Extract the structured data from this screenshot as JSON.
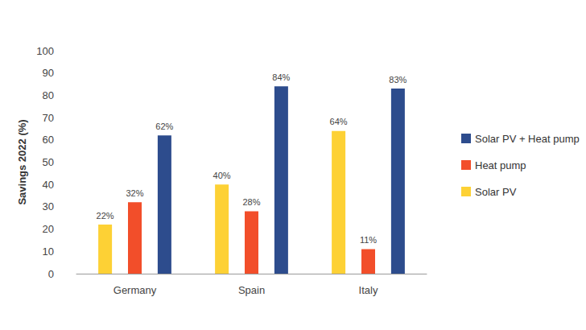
{
  "chart_data": {
    "type": "bar",
    "y_label": "Savings 2022 (%)",
    "categories": [
      "Germany",
      "Spain",
      "Italy"
    ],
    "series": [
      {
        "name": "Solar PV",
        "color": "#fdd135",
        "values": [
          22,
          40,
          64
        ],
        "value_labels": [
          "22%",
          "40%",
          "64%"
        ]
      },
      {
        "name": "Heat pump",
        "color": "#f24e2a",
        "values": [
          32,
          28,
          11
        ],
        "value_labels": [
          "32%",
          "28%",
          "11%"
        ]
      },
      {
        "name": "Solar PV + Heat pump",
        "color": "#2d4c8d",
        "values": [
          62,
          84,
          83
        ],
        "value_labels": [
          "62%",
          "84%",
          "83%"
        ]
      }
    ],
    "ylim": [
      0,
      100
    ],
    "yticks": [
      0,
      10,
      20,
      30,
      40,
      50,
      60,
      70,
      80,
      90,
      100
    ],
    "grid": false,
    "legend": "right",
    "data_labels": true
  }
}
